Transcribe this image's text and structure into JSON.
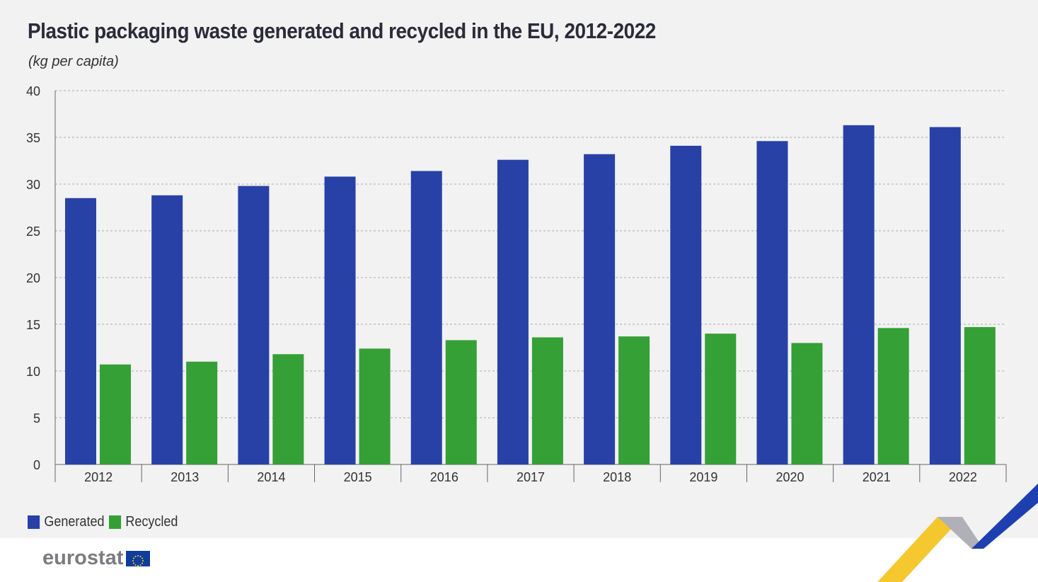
{
  "chart_data": {
    "type": "bar",
    "title": "Plastic packaging waste generated and recycled in the EU, 2012-2022",
    "subtitle": "(kg per capita)",
    "categories": [
      "2012",
      "2013",
      "2014",
      "2015",
      "2016",
      "2017",
      "2018",
      "2019",
      "2020",
      "2021",
      "2022"
    ],
    "series": [
      {
        "name": "Generated",
        "color": "#2841a6",
        "values": [
          28.5,
          28.8,
          29.8,
          30.8,
          31.4,
          32.6,
          33.2,
          34.1,
          34.6,
          36.3,
          36.1
        ]
      },
      {
        "name": "Recycled",
        "color": "#35a035",
        "values": [
          10.7,
          11.0,
          11.8,
          12.4,
          13.3,
          13.6,
          13.7,
          14.0,
          13.0,
          14.6,
          14.7
        ]
      }
    ],
    "ylim": [
      0,
      40
    ],
    "yticks": [
      0,
      5,
      10,
      15,
      20,
      25,
      30,
      35,
      40
    ],
    "grid": true,
    "legend": "bottom-left"
  },
  "footer": {
    "logo": "eurostat"
  }
}
